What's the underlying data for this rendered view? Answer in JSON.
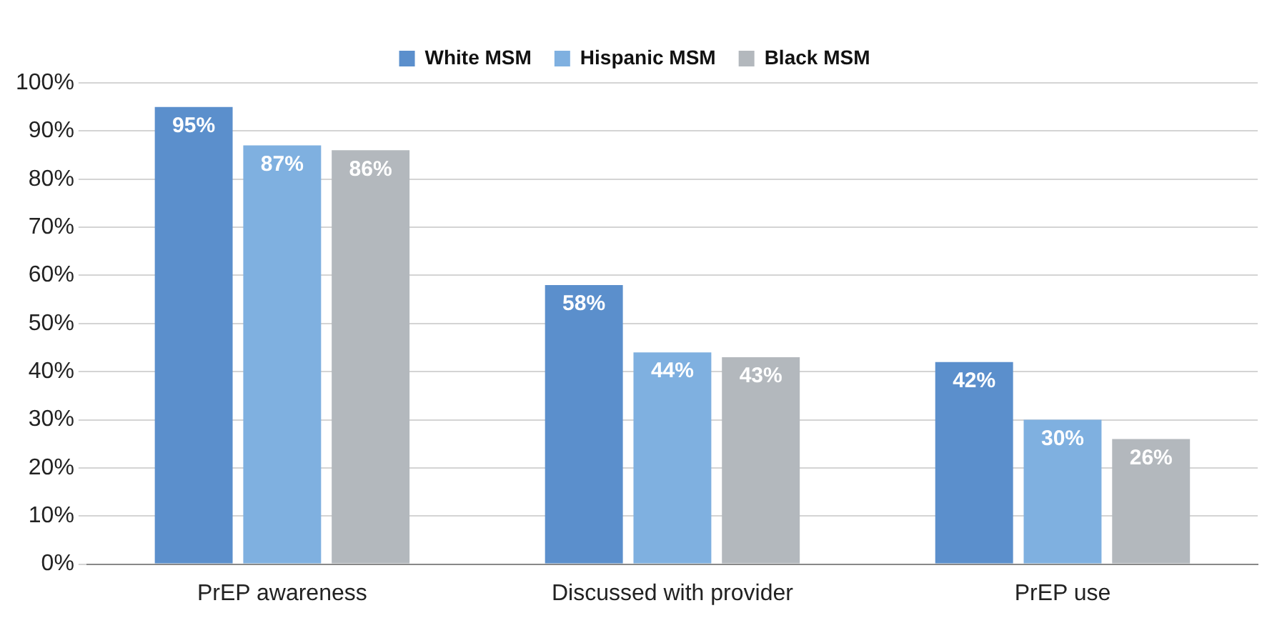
{
  "chart_data": {
    "type": "bar",
    "categories": [
      "PrEP awareness",
      "Discussed with provider",
      "PrEP use"
    ],
    "series": [
      {
        "name": "White MSM",
        "color": "#5b8fcc",
        "values": [
          95,
          58,
          42
        ],
        "value_labels": [
          "95%",
          "58%",
          "42%"
        ]
      },
      {
        "name": "Hispanic MSM",
        "color": "#7fb0e0",
        "values": [
          87,
          44,
          30
        ],
        "value_labels": [
          "87%",
          "44%",
          "30%"
        ]
      },
      {
        "name": "Black MSM",
        "color": "#b3b8bd",
        "values": [
          86,
          43,
          26
        ],
        "value_labels": [
          "86%",
          "43%",
          "26%"
        ]
      }
    ],
    "ylim": [
      0,
      100
    ],
    "yticks": [
      {
        "value": 0,
        "label": "0%"
      },
      {
        "value": 10,
        "label": "10%"
      },
      {
        "value": 20,
        "label": "20%"
      },
      {
        "value": 30,
        "label": "30%"
      },
      {
        "value": 40,
        "label": "40%"
      },
      {
        "value": 50,
        "label": "50%"
      },
      {
        "value": 60,
        "label": "60%"
      },
      {
        "value": 70,
        "label": "70%"
      },
      {
        "value": 80,
        "label": "80%"
      },
      {
        "value": 90,
        "label": "90%"
      },
      {
        "value": 100,
        "label": "100%"
      }
    ],
    "grid": "y",
    "legend": "top"
  }
}
